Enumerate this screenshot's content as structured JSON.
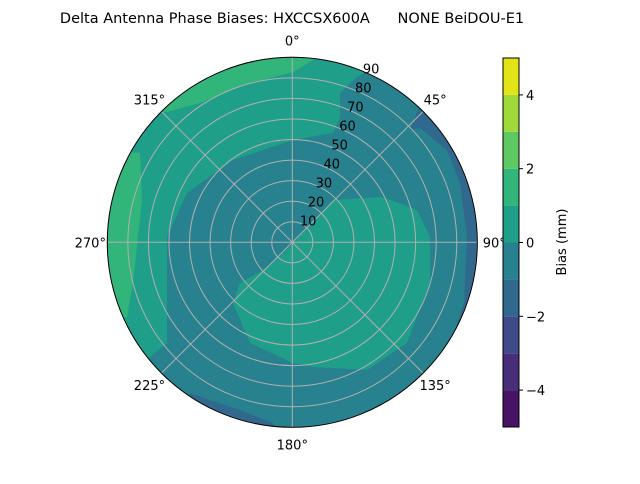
{
  "chart_data": {
    "type": "polar-contour",
    "title": "Delta Antenna Phase Biases: HXCCSX600A      NONE BeiDOU-E1",
    "angle_ticks": [
      "0°",
      "45°",
      "90°",
      "135°",
      "180°",
      "225°",
      "270°",
      "315°"
    ],
    "angle_direction": "clockwise, 0° at top",
    "radial_ticks": [
      "10",
      "20",
      "30",
      "40",
      "50",
      "60",
      "70",
      "80",
      "90"
    ],
    "radial_range": [
      0,
      90
    ],
    "grid": true,
    "colorbar": {
      "label": "Bias (mm)",
      "range": [
        -5,
        5
      ],
      "levels": [
        -5,
        -4,
        -3,
        -2,
        -1,
        0,
        1,
        2,
        3,
        4,
        5
      ],
      "ticks": [
        "−4",
        "−2",
        "0",
        "2",
        "4"
      ],
      "tick_values": [
        -4,
        -2,
        0,
        2,
        4
      ],
      "colors": [
        "#471365",
        "#482d7b",
        "#3e4a89",
        "#31688e",
        "#27818e",
        "#1f9e89",
        "#32b57a",
        "#5ec962",
        "#9fda3a",
        "#e2e418"
      ],
      "colormap": "viridis"
    },
    "regions": [
      {
        "area": "most of the disc incl. zenith",
        "level": [
          -1,
          0
        ]
      },
      {
        "area": "upper-left / west band",
        "level": [
          0,
          1
        ]
      },
      {
        "area": "north edge near 330°-10°",
        "level": [
          1,
          2
        ]
      },
      {
        "area": "west edge near 270°-300°",
        "level": [
          1,
          2
        ]
      },
      {
        "area": "south-east lobe",
        "level": [
          0,
          1
        ]
      },
      {
        "area": "east edge 50°-120°",
        "level": [
          -2,
          -1
        ]
      },
      {
        "area": "south-west edge 190°-215°",
        "level": [
          -2,
          -1
        ]
      }
    ]
  }
}
